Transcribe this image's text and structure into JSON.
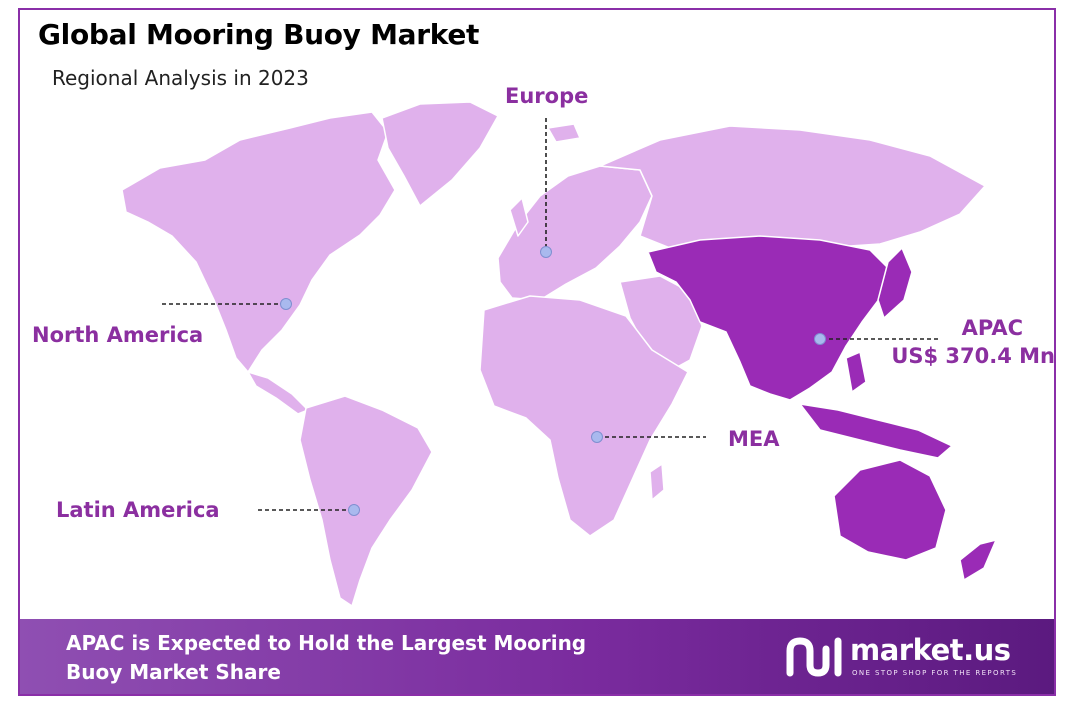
{
  "header": {
    "title": "Global Mooring Buoy Market",
    "subtitle": "Regional Analysis in 2023"
  },
  "regions": {
    "europe": "Europe",
    "north_america": "North America",
    "apac_name": "APAC",
    "apac_value": "US$ 370.4 Mn",
    "mea": "MEA",
    "latin_america": "Latin America"
  },
  "banner": {
    "line1": "APAC is Expected to Hold the Largest Mooring",
    "line2": "Buoy Market Share"
  },
  "brand": {
    "name": "market.us",
    "tagline": "ONE STOP SHOP FOR THE REPORTS"
  },
  "colors": {
    "land_light": "#e0b1ec",
    "land_highlight": "#9a2bb6",
    "label": "#8b2fa0",
    "border": "#8a2fa8",
    "banner": "#7a2b9e",
    "marker": "#a9b9ee"
  },
  "highlighted_region": "APAC"
}
